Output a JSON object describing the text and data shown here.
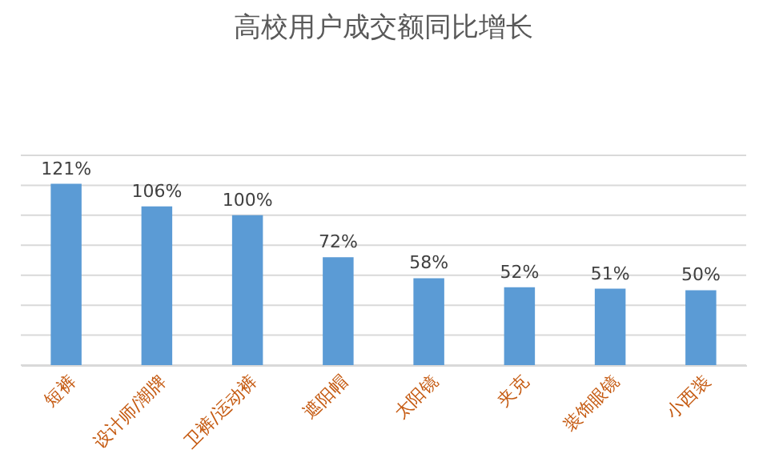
{
  "chart_data": {
    "type": "bar",
    "title": "高校用户成交额同比增长",
    "categories": [
      "短裤",
      "设计师/潮牌",
      "卫裤/运动裤",
      "遮阳帽",
      "太阳镜",
      "夹克",
      "装饰眼镜",
      "小西装"
    ],
    "values": [
      121,
      106,
      100,
      72,
      58,
      52,
      51,
      50
    ],
    "value_labels": [
      "121%",
      "106%",
      "100%",
      "72%",
      "58%",
      "52%",
      "51%",
      "50%"
    ],
    "color": "#5b9bd5",
    "ylim": [
      0,
      140
    ],
    "yticks": [
      {
        "value": 0,
        "label": null
      },
      {
        "value": 20,
        "label": null
      },
      {
        "value": 40,
        "label": null
      },
      {
        "value": 60,
        "label": null
      },
      {
        "value": 80,
        "label": null
      },
      {
        "value": 100,
        "label": null
      },
      {
        "value": 120,
        "label": null
      },
      {
        "value": 140,
        "label": null
      }
    ],
    "grid": "y",
    "tick_labels": "x"
  }
}
